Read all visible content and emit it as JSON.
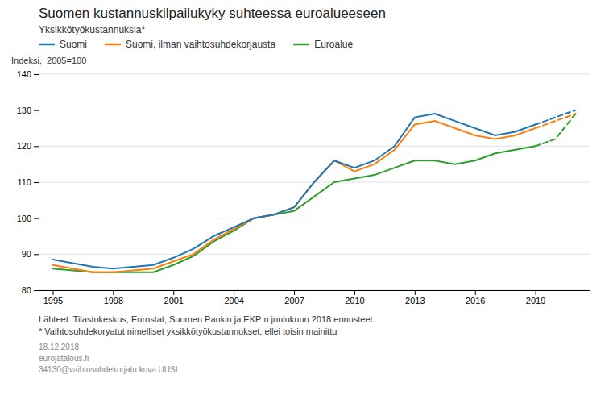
{
  "chart_data": {
    "type": "line",
    "title": "Suomen kustannuskilpailukyky suhteessa euroalueeseen",
    "subtitle": "Yksikkötyökustannuksia*",
    "ylabel": "Indeksi,  2005=100",
    "annotations": [
      "Lähteet: Tilastokeskus, Eurostat, Suomen Pankin ja EKP:n joulukuun 2018 ennusteet.",
      "* Vaihtosuhdekoryatut nimelliset yksikkötyökustannukset, ellei toisin mainittu",
      "18.12.2018",
      "eurojatalous.fi",
      "34130@vaihtosuhdekorjatu kuva UUSI"
    ],
    "x": [
      1995,
      1996,
      1997,
      1998,
      1999,
      2000,
      2001,
      2002,
      2003,
      2004,
      2005,
      2006,
      2007,
      2008,
      2009,
      2010,
      2011,
      2012,
      2013,
      2014,
      2015,
      2016,
      2017,
      2018,
      2019,
      2020,
      2021
    ],
    "series": [
      {
        "name": "Suomi",
        "values": [
          88.5,
          87.5,
          86.5,
          86.0,
          86.5,
          87.0,
          89.0,
          91.5,
          95.0,
          97.5,
          100,
          101,
          103,
          110,
          116,
          114,
          116,
          120,
          128,
          129,
          127,
          125,
          123,
          124,
          126,
          128,
          130
        ]
      },
      {
        "name": "Suomi, ilman vaihtosuhdekorjausta",
        "values": [
          87.0,
          86.0,
          85.0,
          85.0,
          85.5,
          86.0,
          88.0,
          90.0,
          94.0,
          97.0,
          100,
          101,
          103,
          110,
          116,
          113,
          115,
          119,
          126,
          127,
          125,
          123,
          122,
          123,
          125,
          127,
          129
        ]
      },
      {
        "name": "Euroalue",
        "values": [
          86.0,
          85.5,
          85.0,
          85.0,
          85.0,
          85.0,
          87.0,
          89.5,
          93.5,
          96.5,
          100,
          101,
          102,
          106,
          110,
          111,
          112,
          114,
          116,
          116,
          115,
          116,
          118,
          119,
          120,
          122,
          129
        ]
      }
    ],
    "forecast_start": 2019,
    "xlim": [
      1994.3,
      2021.7
    ],
    "xticks": [
      1995,
      1998,
      2001,
      2004,
      2007,
      2010,
      2013,
      2016,
      2019
    ],
    "ylim": [
      80,
      140
    ],
    "yticks": [
      80,
      90,
      100,
      110,
      120,
      130,
      140
    ],
    "grid": true,
    "legend": "top"
  }
}
